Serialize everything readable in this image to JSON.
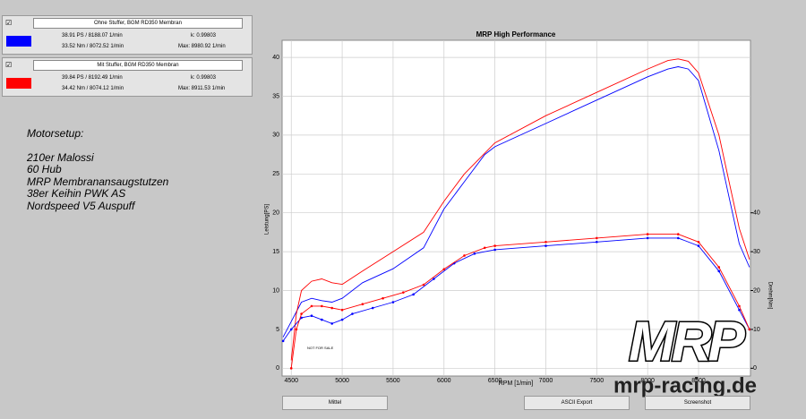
{
  "panels": [
    {
      "check": "☑",
      "name": "Ohne Stuffer, BGM RD350 Membran",
      "color": "#0000ff",
      "power": "38.91 PS / 8188.07 1/min",
      "k": "k: 0.99803",
      "torque": "33.52 Nm / 8072.52 1/min",
      "max": "Max: 8980.92 1/min"
    },
    {
      "check": "☑",
      "name": "Mit Stuffer, BGM RD350 Membran",
      "color": "#ff0000",
      "power": "39.84 PS / 8192.49 1/min",
      "k": "k: 0.99803",
      "torque": "34.42 Nm / 8074.12 1/min",
      "max": "Max: 8911.53 1/min"
    }
  ],
  "notes": [
    "Motorsetup:",
    "210er Malossi",
    "60 Hub",
    "MRP Membranansaugstutzen",
    "38er Keihin PWK AS",
    "Nordspeed V5 Auspuff"
  ],
  "buttons": [
    "Mittel",
    "ASCII Export",
    "Screenshot"
  ],
  "logo": {
    "mark": "MRP",
    "site": "mrp-racing.de"
  },
  "chart_data": {
    "type": "line",
    "title": "MRP High Performance",
    "xlabel": "RPM [1/min]",
    "ylabel": "Leistung[PS]",
    "y2label": "Drehm[Nm]",
    "annotation": "NOT FOR SALE",
    "grid": true,
    "xlim": [
      4410,
      9010
    ],
    "xticks": [
      4500,
      5000,
      5500,
      6000,
      6500,
      7000,
      7500,
      8000,
      8500
    ],
    "ylim": [
      -1,
      42.2
    ],
    "yticks": [
      0,
      5,
      10,
      15,
      20,
      25,
      30,
      35,
      40
    ],
    "y2lim": [
      -2,
      84.4
    ],
    "y2ticks": [
      0,
      10,
      20,
      30,
      40
    ],
    "series": [
      {
        "name": "Ohne Stuffer Leistung",
        "color": "#0000ff",
        "x": [
          4420,
          4500,
          4600,
          4700,
          4800,
          4900,
          5000,
          5200,
          5500,
          5800,
          6000,
          6200,
          6400,
          6500,
          7000,
          7500,
          8000,
          8200,
          8300,
          8400,
          8500,
          8700,
          8800,
          8900,
          9000
        ],
        "values": [
          4,
          6,
          8.5,
          9,
          8.7,
          8.5,
          9,
          11,
          12.8,
          15.5,
          20.5,
          24,
          27.5,
          28.5,
          31.5,
          34.5,
          37.5,
          38.5,
          38.8,
          38.5,
          37,
          28,
          22,
          16,
          13
        ]
      },
      {
        "name": "Mit Stuffer Leistung",
        "color": "#ff0000",
        "x": [
          4500,
          4550,
          4600,
          4700,
          4800,
          4900,
          5000,
          5200,
          5500,
          5800,
          6000,
          6200,
          6500,
          7000,
          7500,
          8000,
          8200,
          8300,
          8400,
          8500,
          8700,
          8800,
          8900,
          9000
        ],
        "values": [
          1,
          7,
          10,
          11.2,
          11.5,
          11,
          10.8,
          12.5,
          15,
          17.5,
          21.5,
          25,
          29,
          32.5,
          35.5,
          38.5,
          39.6,
          39.8,
          39.5,
          38,
          30,
          24,
          18,
          14
        ]
      },
      {
        "name": "Ohne Stuffer Drehmoment",
        "color": "#0000ff",
        "axis": "y2",
        "markers": true,
        "x": [
          4420,
          4500,
          4600,
          4700,
          4800,
          4900,
          5000,
          5100,
          5300,
          5500,
          5700,
          5900,
          6100,
          6300,
          6500,
          7000,
          7500,
          8000,
          8300,
          8500,
          8700,
          8900,
          9000
        ],
        "values": [
          7,
          10,
          13,
          13.5,
          12.5,
          11.5,
          12.5,
          14,
          15.5,
          17,
          19,
          23,
          27,
          29.5,
          30.5,
          31.5,
          32.5,
          33.5,
          33.5,
          31.5,
          25,
          15,
          10
        ]
      },
      {
        "name": "Mit Stuffer Drehmoment",
        "color": "#ff0000",
        "axis": "y2",
        "markers": true,
        "x": [
          4500,
          4550,
          4600,
          4700,
          4800,
          4900,
          5000,
          5200,
          5400,
          5600,
          5800,
          6000,
          6200,
          6400,
          6500,
          7000,
          7500,
          8000,
          8300,
          8500,
          8700,
          8900,
          9000
        ],
        "values": [
          0,
          10,
          14,
          16,
          16,
          15.5,
          15,
          16.5,
          18,
          19.5,
          21.5,
          25.5,
          29,
          31,
          31.5,
          32.5,
          33.5,
          34.5,
          34.5,
          32.5,
          26,
          16,
          10
        ]
      }
    ]
  }
}
